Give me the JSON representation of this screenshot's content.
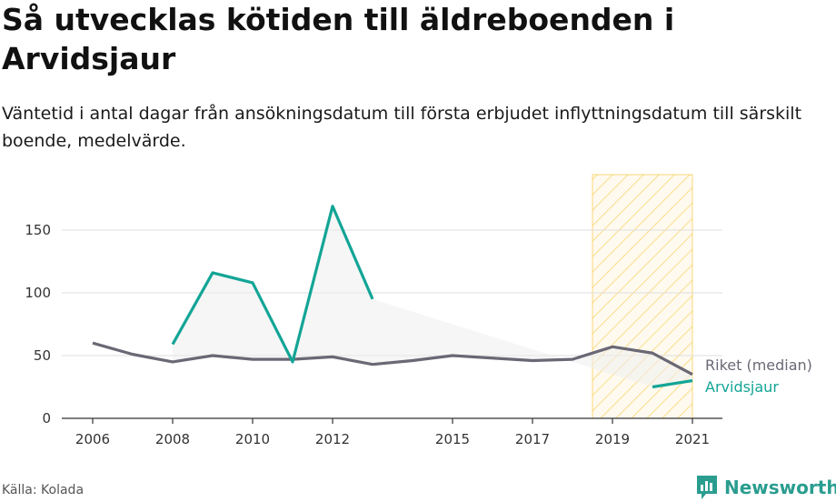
{
  "title": "Så utvecklas kötiden till äldreboenden i Arvidsjaur",
  "subtitle": "Väntetid i antal dagar från ansökningsdatum till första erbjudet inflyttningsdatum till särskilt boende, medelvärde.",
  "source": "Källa: Kolada",
  "brand": "Newsworthy",
  "colors": {
    "riket": "#6b6875",
    "arvidsjaur": "#13a596",
    "highlight": "#f5c842",
    "band": "#efefef",
    "grid": "#dddddd",
    "axis": "#333333"
  },
  "chart_data": {
    "type": "line",
    "x_ticks": [
      2006,
      2008,
      2010,
      2012,
      2015,
      2017,
      2019,
      2021
    ],
    "y_ticks": [
      0,
      50,
      100,
      150
    ],
    "xlim": [
      2006,
      2021
    ],
    "ylim": [
      0,
      170
    ],
    "highlight_range": [
      2018.5,
      2021
    ],
    "grid": true,
    "series": [
      {
        "name": "Riket (median)",
        "color": "#6b6875",
        "x": [
          2006,
          2007,
          2008,
          2009,
          2010,
          2011,
          2012,
          2013,
          2014,
          2015,
          2016,
          2017,
          2018,
          2019,
          2020,
          2021
        ],
        "values": [
          60,
          51,
          45,
          50,
          47,
          47,
          49,
          43,
          46,
          50,
          48,
          46,
          47,
          57,
          52,
          35
        ]
      },
      {
        "name": "Arvidsjaur",
        "color": "#13a596",
        "x": [
          2006,
          2007,
          2008,
          2009,
          2010,
          2011,
          2012,
          2013,
          2014,
          2015,
          2016,
          2017,
          2018,
          2019,
          2020,
          2021
        ],
        "values": [
          null,
          null,
          59,
          116,
          108,
          45,
          169,
          95,
          null,
          null,
          null,
          null,
          null,
          null,
          25,
          30
        ]
      }
    ]
  }
}
